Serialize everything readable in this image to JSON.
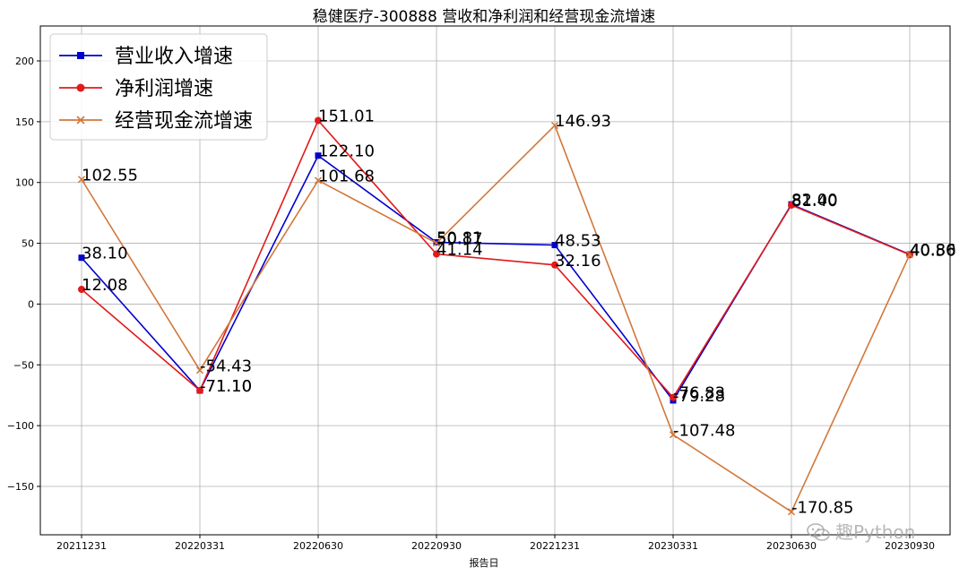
{
  "chart_data": {
    "type": "line",
    "title": "稳健医疗-300888 营收和净利润和经营现金流增速",
    "xlabel": "报告日",
    "ylabel": "",
    "categories": [
      "20211231",
      "20220331",
      "20220630",
      "20220930",
      "20221231",
      "20230331",
      "20230630",
      "20230930"
    ],
    "ylim": [
      -190,
      230
    ],
    "yticks": [
      -150,
      -100,
      -50,
      0,
      50,
      100,
      150,
      200
    ],
    "grid": true,
    "legend_position": "top-left",
    "series": [
      {
        "name": "营业收入增速",
        "color": "#0000cc",
        "marker": "square",
        "values": [
          38.1,
          -71.1,
          122.1,
          50.81,
          48.53,
          -79.28,
          82.0,
          40.86
        ]
      },
      {
        "name": "净利润增速",
        "color": "#e01b1b",
        "marker": "circle",
        "values": [
          12.08,
          -71.1,
          151.01,
          41.14,
          32.16,
          -76.83,
          81.4,
          40.56
        ]
      },
      {
        "name": "经营现金流增速",
        "color": "#d2773a",
        "marker": "x",
        "values": [
          102.55,
          -54.43,
          101.68,
          50.17,
          146.93,
          -107.48,
          -170.85,
          40.8
        ]
      }
    ]
  },
  "watermark": {
    "text": "趣Python",
    "icon": "wechat-icon"
  }
}
